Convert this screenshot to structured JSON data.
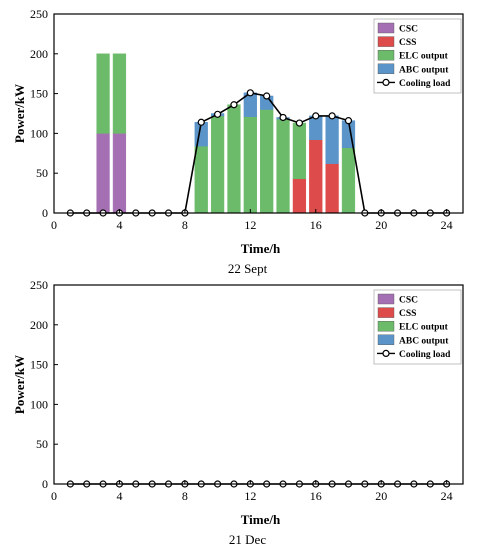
{
  "colors": {
    "csc": "#a56fb3",
    "css": "#dd4b4b",
    "elc": "#6cbb6a",
    "abc": "#5a94c8",
    "load": "#000000"
  },
  "chart_data": [
    {
      "type": "bar",
      "caption": "22 Sept",
      "xlabel": "Time/h",
      "ylabel": "Power/kW",
      "xlim": [
        0,
        25
      ],
      "ylim": [
        0,
        250
      ],
      "xticks": [
        0,
        4,
        8,
        12,
        16,
        20,
        24
      ],
      "yticks": [
        0,
        50,
        100,
        150,
        200,
        250
      ],
      "legend_position": "top-right",
      "legend": [
        "CSC",
        "CSS",
        "ELC  output",
        "ABC output",
        "Cooling load"
      ],
      "x": [
        1,
        2,
        3,
        4,
        5,
        6,
        7,
        8,
        9,
        10,
        11,
        12,
        13,
        14,
        15,
        16,
        17,
        18,
        19,
        20,
        21,
        22,
        23,
        24
      ],
      "series": [
        {
          "name": "CSC",
          "stack": true,
          "values": [
            0,
            0,
            100,
            100,
            0,
            0,
            0,
            0,
            0,
            0,
            0,
            0,
            0,
            0,
            0,
            0,
            0,
            0,
            0,
            0,
            0,
            0,
            0,
            0
          ]
        },
        {
          "name": "CSS",
          "stack": true,
          "values": [
            0,
            0,
            0,
            0,
            0,
            0,
            0,
            0,
            0,
            0,
            0,
            0,
            0,
            0,
            43,
            92,
            62,
            0,
            0,
            0,
            0,
            0,
            0,
            0
          ]
        },
        {
          "name": "ELC  output",
          "stack": true,
          "values": [
            0,
            0,
            100,
            100,
            0,
            0,
            0,
            0,
            84,
            122,
            136,
            121,
            130,
            118,
            70,
            0,
            0,
            82,
            0,
            0,
            0,
            0,
            0,
            0
          ]
        },
        {
          "name": "ABC output",
          "stack": true,
          "values": [
            0,
            0,
            0,
            0,
            0,
            0,
            0,
            0,
            30,
            3,
            0,
            30,
            17,
            2,
            0,
            30,
            60,
            34,
            0,
            0,
            0,
            0,
            0,
            0
          ]
        },
        {
          "name": "Cooling load",
          "type": "line",
          "values": [
            0,
            0,
            0,
            0,
            0,
            0,
            0,
            0,
            114,
            124,
            136,
            151,
            147,
            120,
            113,
            122,
            122,
            116,
            0,
            0,
            0,
            0,
            0,
            0
          ]
        }
      ]
    },
    {
      "type": "bar",
      "caption": "21 Dec",
      "xlabel": "Time/h",
      "ylabel": "Power/kW",
      "xlim": [
        0,
        25
      ],
      "ylim": [
        0,
        250
      ],
      "xticks": [
        0,
        4,
        8,
        12,
        16,
        20,
        24
      ],
      "yticks": [
        0,
        50,
        100,
        150,
        200,
        250
      ],
      "legend_position": "top-right",
      "legend": [
        "CSC",
        "CSS",
        "ELC  output",
        "ABC output",
        "Cooling load"
      ],
      "x": [
        1,
        2,
        3,
        4,
        5,
        6,
        7,
        8,
        9,
        10,
        11,
        12,
        13,
        14,
        15,
        16,
        17,
        18,
        19,
        20,
        21,
        22,
        23,
        24
      ],
      "series": [
        {
          "name": "CSC",
          "stack": true,
          "values": [
            0,
            0,
            0,
            0,
            0,
            0,
            0,
            0,
            0,
            0,
            0,
            0,
            0,
            0,
            0,
            0,
            0,
            0,
            0,
            0,
            0,
            0,
            0,
            0
          ]
        },
        {
          "name": "CSS",
          "stack": true,
          "values": [
            0,
            0,
            0,
            0,
            0,
            0,
            0,
            0,
            0,
            0,
            0,
            0,
            0,
            0,
            0,
            0,
            0,
            0,
            0,
            0,
            0,
            0,
            0,
            0
          ]
        },
        {
          "name": "ELC  output",
          "stack": true,
          "values": [
            0,
            0,
            0,
            0,
            0,
            0,
            0,
            0,
            0,
            0,
            0,
            0,
            0,
            0,
            0,
            0,
            0,
            0,
            0,
            0,
            0,
            0,
            0,
            0
          ]
        },
        {
          "name": "ABC output",
          "stack": true,
          "values": [
            0,
            0,
            0,
            0,
            0,
            0,
            0,
            0,
            0,
            0,
            0,
            0,
            0,
            0,
            0,
            0,
            0,
            0,
            0,
            0,
            0,
            0,
            0,
            0
          ]
        },
        {
          "name": "Cooling load",
          "type": "line",
          "values": [
            0,
            0,
            0,
            0,
            0,
            0,
            0,
            0,
            0,
            0,
            0,
            0,
            0,
            0,
            0,
            0,
            0,
            0,
            0,
            0,
            0,
            0,
            0,
            0
          ]
        }
      ]
    }
  ]
}
